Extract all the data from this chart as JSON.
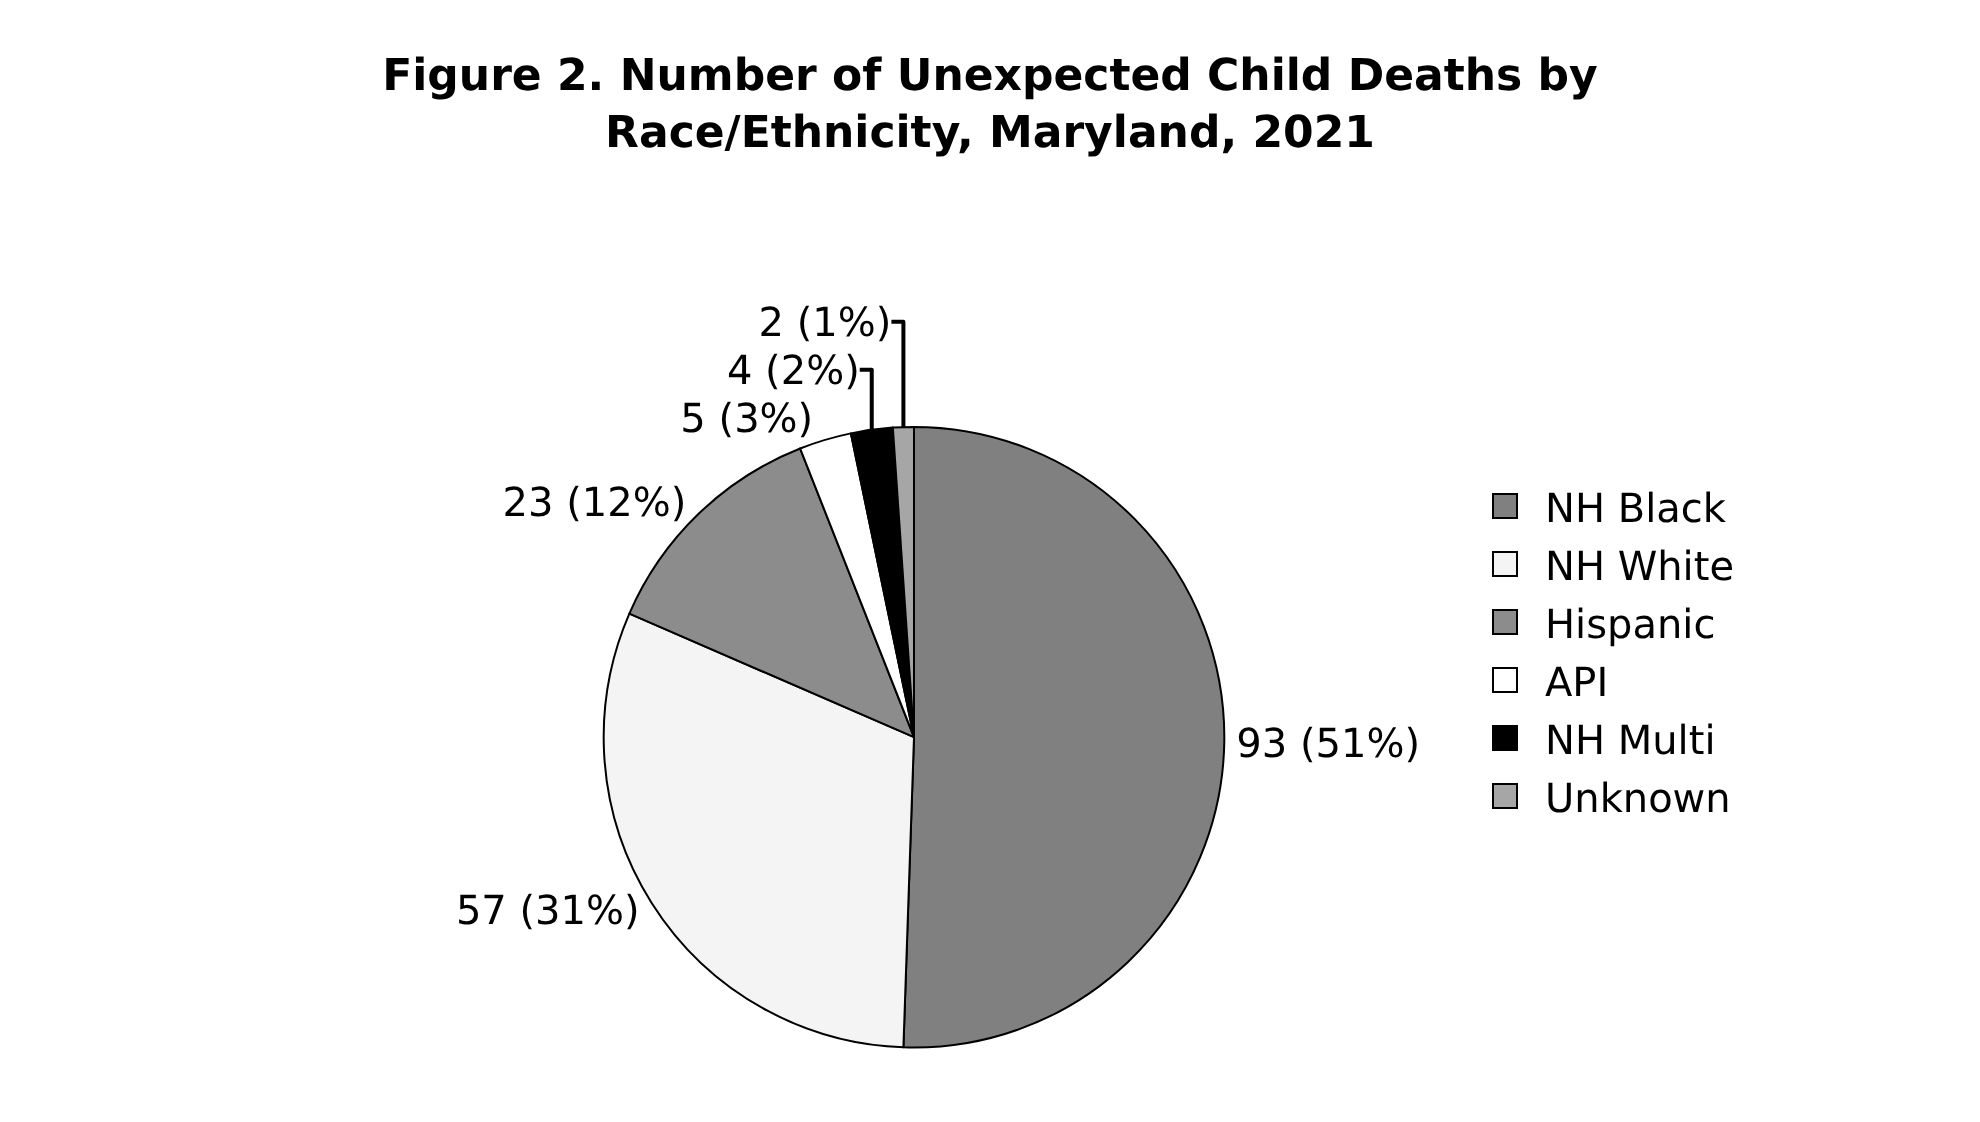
{
  "chart_data": {
    "type": "pie",
    "title": "Figure 2. Number of Unexpected Child Deaths by\nRace/Ethnicity, Maryland, 2021",
    "categories": [
      "NH Black",
      "NH White",
      "Hispanic",
      "API",
      "NH Multi",
      "Unknown"
    ],
    "values": [
      93,
      57,
      23,
      5,
      4,
      2
    ],
    "value_labels": [
      "93 (51%)",
      "57 (31%)",
      "23 (12%)",
      "5 (3%)",
      "4 (2%)",
      "2 (1%)"
    ],
    "colors": [
      "#808080",
      "#f4f4f4",
      "#8c8c8c",
      "#ffffff",
      "#000000",
      "#a6a6a6"
    ],
    "legend": "right"
  }
}
